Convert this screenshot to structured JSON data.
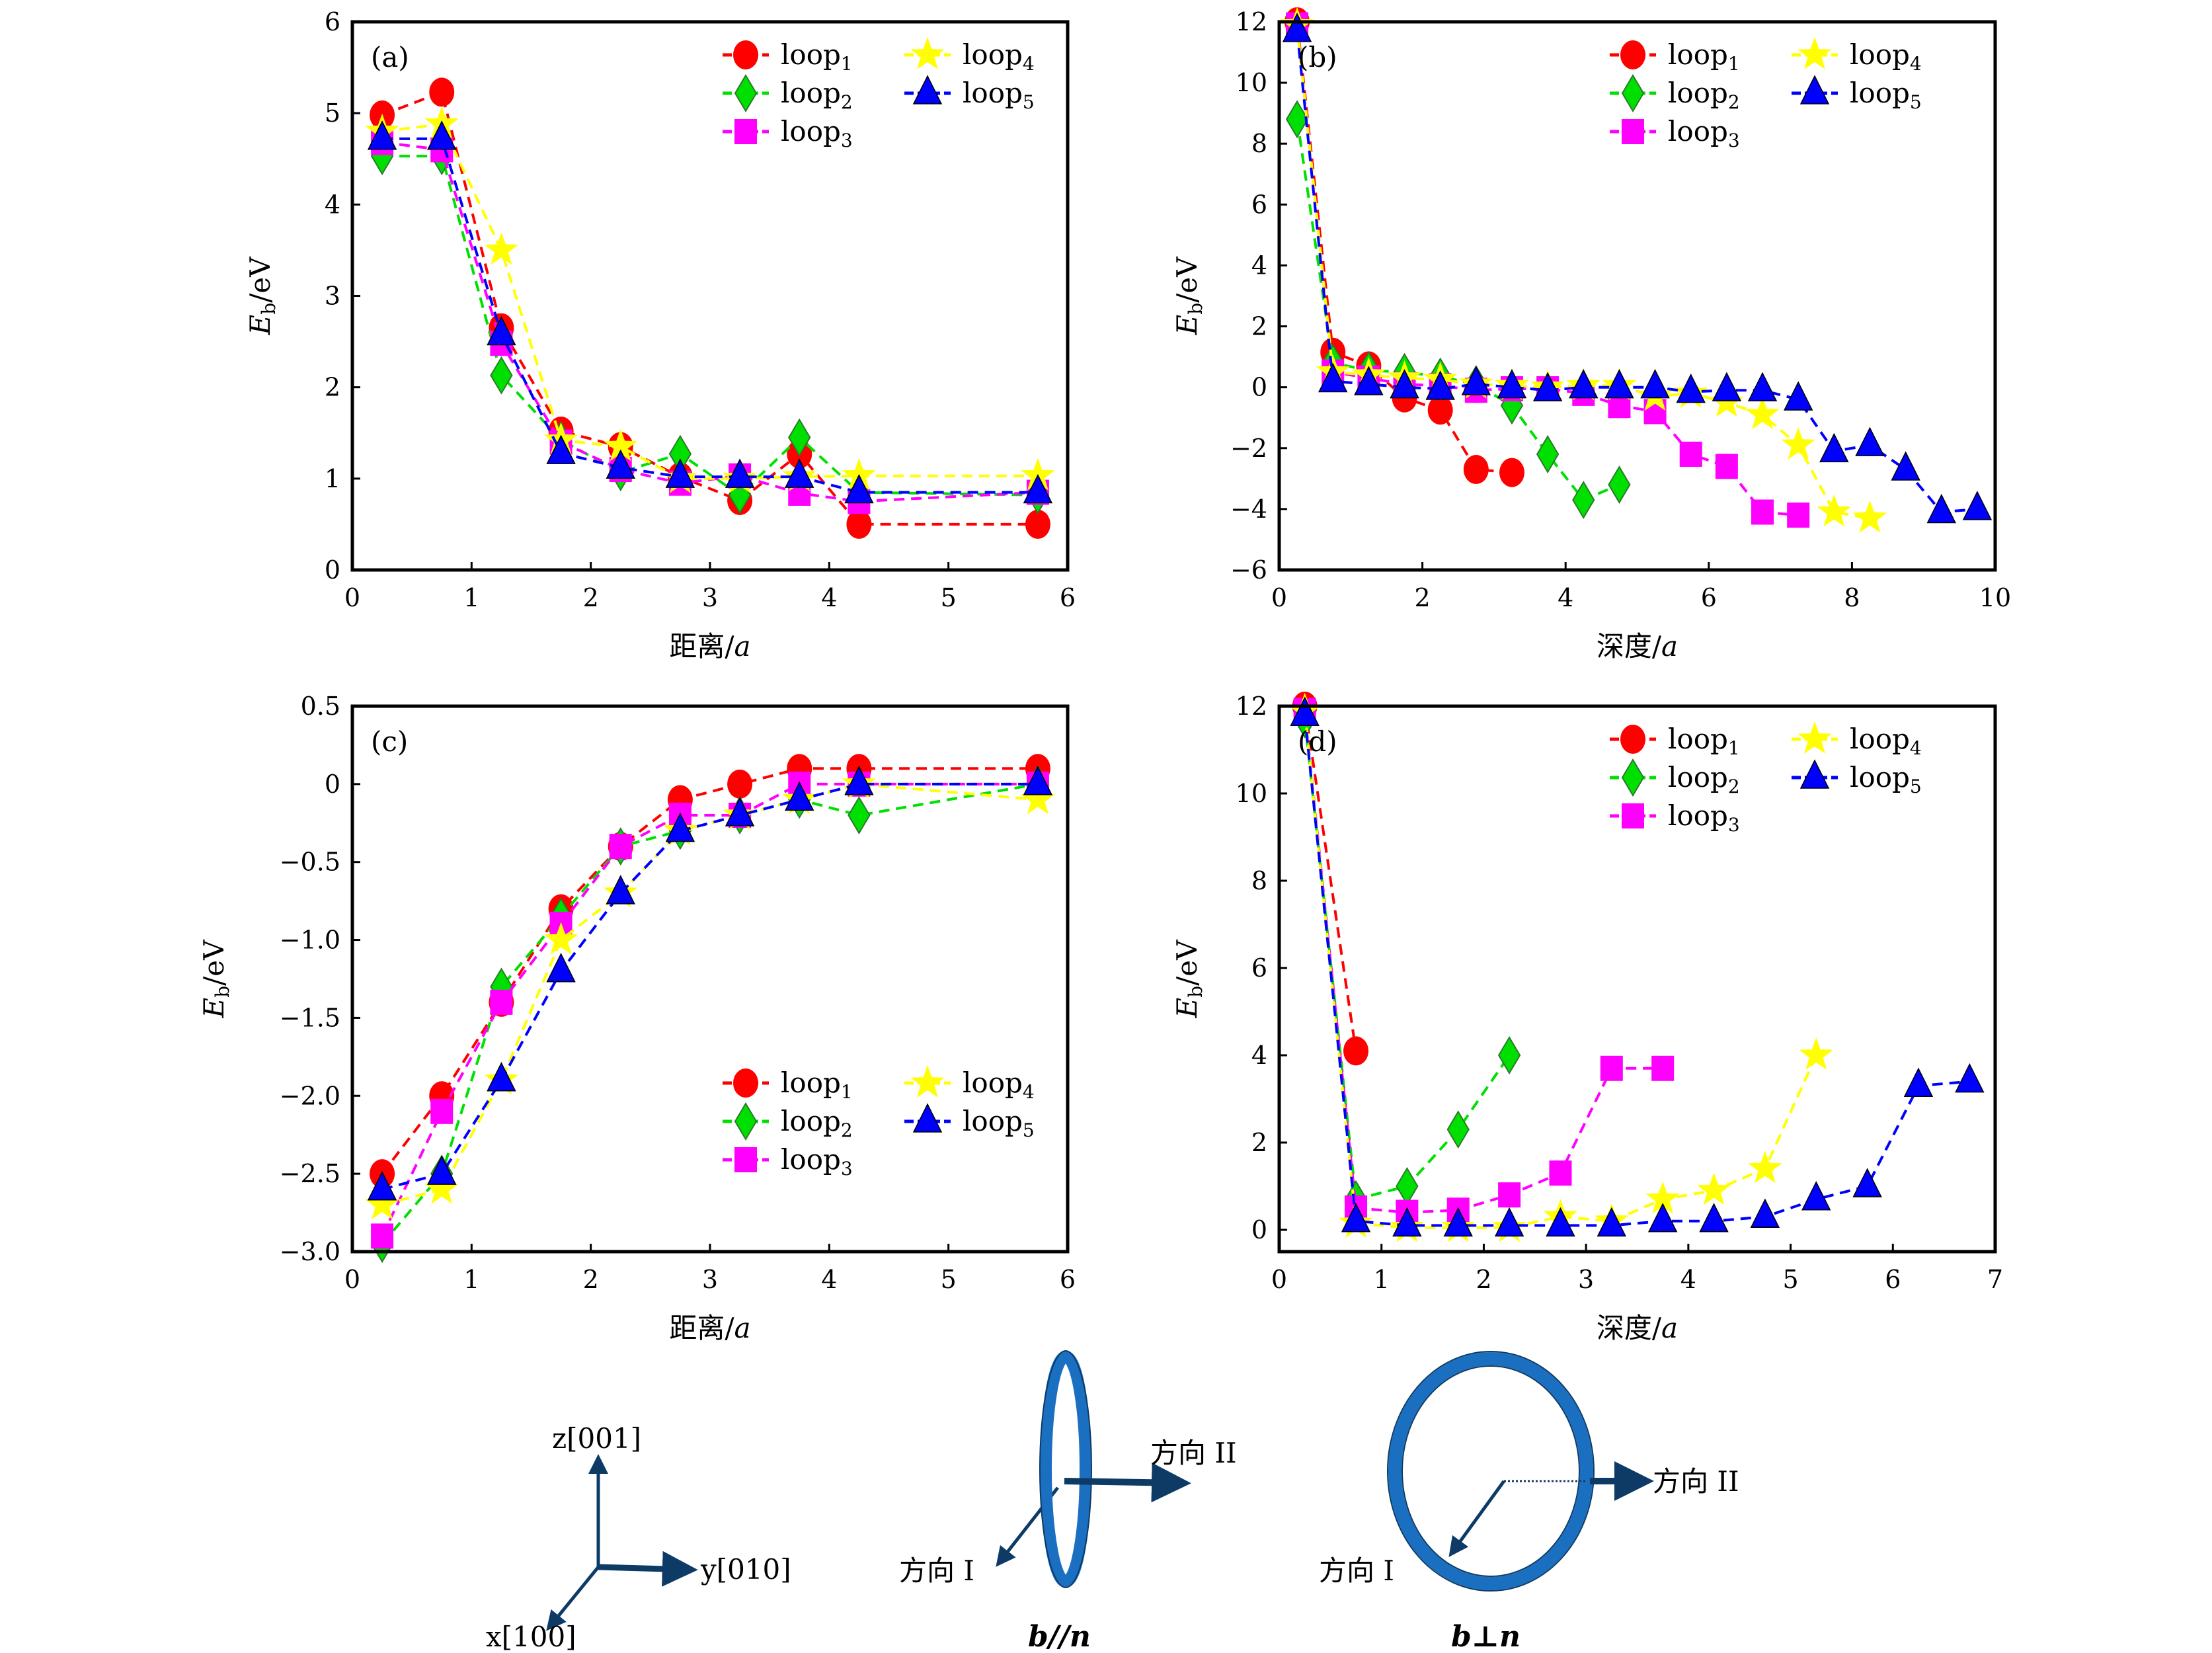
{
  "chart_data": [
    {
      "type": "line",
      "panel_label": "(a)",
      "xlabel": "距离/a",
      "ylabel": "E_b/eV",
      "xlim": [
        0,
        6
      ],
      "ylim": [
        0,
        6
      ],
      "xticks": [
        0,
        1,
        2,
        3,
        4,
        5,
        6
      ],
      "yticks": [
        0,
        1,
        2,
        3,
        4,
        5,
        6
      ],
      "ytick_labels": [
        "0",
        "1",
        "2",
        "3",
        "4",
        "5",
        "6"
      ],
      "grid": false,
      "legend_placement": "top-right",
      "series": [
        {
          "name": "loop1",
          "x": [
            0.25,
            0.75,
            1.25,
            1.75,
            2.25,
            2.75,
            3.25,
            3.75,
            4.25,
            5.75
          ],
          "y": [
            4.98,
            5.23,
            2.65,
            1.52,
            1.35,
            1.02,
            0.76,
            1.27,
            0.5,
            0.5
          ]
        },
        {
          "name": "loop2",
          "x": [
            0.25,
            0.75,
            1.25,
            1.75,
            2.25,
            2.75,
            3.25,
            3.75,
            4.25,
            5.75
          ],
          "y": [
            4.53,
            4.53,
            2.13,
            1.42,
            1.07,
            1.27,
            0.82,
            1.45,
            0.85,
            0.82
          ]
        },
        {
          "name": "loop3",
          "x": [
            0.25,
            0.75,
            1.25,
            1.75,
            2.25,
            2.75,
            3.25,
            3.75,
            4.25,
            5.75
          ],
          "y": [
            4.68,
            4.6,
            2.48,
            1.4,
            1.1,
            0.95,
            1.03,
            0.84,
            0.75,
            0.85
          ]
        },
        {
          "name": "loop4",
          "x": [
            0.25,
            0.75,
            1.25,
            1.75,
            2.25,
            2.75,
            3.25,
            3.75,
            4.25,
            5.75
          ],
          "y": [
            4.8,
            4.88,
            3.5,
            1.42,
            1.35,
            1.0,
            1.0,
            1.02,
            1.03,
            1.03
          ]
        },
        {
          "name": "loop5",
          "x": [
            0.25,
            0.75,
            1.25,
            1.75,
            2.25,
            2.75,
            3.25,
            3.75,
            4.25,
            5.75
          ],
          "y": [
            4.72,
            4.72,
            2.58,
            1.28,
            1.12,
            1.02,
            1.02,
            1.02,
            0.85,
            0.85
          ]
        }
      ]
    },
    {
      "type": "line",
      "panel_label": "(b)",
      "xlabel": "深度/a",
      "ylabel": "E_b/eV",
      "xlim": [
        0,
        10
      ],
      "ylim": [
        -6,
        12
      ],
      "xticks": [
        0,
        2,
        4,
        6,
        8,
        10
      ],
      "yticks": [
        -6,
        -4,
        -2,
        0,
        2,
        4,
        6,
        8,
        10,
        12
      ],
      "ytick_labels": [
        "−6",
        "−4",
        "−2",
        "0",
        "2",
        "4",
        "6",
        "8",
        "10",
        "12"
      ],
      "grid": false,
      "legend_placement": "top-right",
      "series": [
        {
          "name": "loop1",
          "x": [
            0.25,
            0.75,
            1.25,
            1.75,
            2.25,
            2.75,
            3.25
          ],
          "y": [
            12.0,
            1.15,
            0.7,
            -0.35,
            -0.75,
            -2.7,
            -2.8
          ]
        },
        {
          "name": "loop2",
          "x": [
            0.25,
            0.75,
            1.25,
            1.75,
            2.25,
            2.75,
            3.25,
            3.75,
            4.25,
            4.75
          ],
          "y": [
            8.8,
            0.8,
            0.55,
            0.5,
            0.35,
            0.1,
            -0.6,
            -2.2,
            -3.7,
            -3.2
          ]
        },
        {
          "name": "loop3",
          "x": [
            0.25,
            0.75,
            1.25,
            1.75,
            2.25,
            2.75,
            3.25,
            3.75,
            4.25,
            4.75,
            5.25,
            5.75,
            6.25,
            6.75,
            7.25
          ],
          "y": [
            11.9,
            0.5,
            0.3,
            0.1,
            0.05,
            -0.1,
            -0.05,
            -0.05,
            -0.2,
            -0.6,
            -0.8,
            -2.2,
            -2.6,
            -4.1,
            -4.2
          ]
        },
        {
          "name": "loop4",
          "x": [
            0.25,
            0.75,
            1.25,
            1.75,
            2.25,
            2.75,
            3.25,
            3.75,
            4.25,
            4.75,
            5.25,
            5.75,
            6.25,
            6.75,
            7.25,
            7.75,
            8.25
          ],
          "y": [
            11.9,
            0.5,
            0.4,
            0.3,
            0.25,
            0.1,
            0.05,
            0.0,
            0.05,
            0.05,
            -0.3,
            -0.2,
            -0.5,
            -0.9,
            -1.9,
            -4.1,
            -4.3
          ]
        },
        {
          "name": "loop5",
          "x": [
            0.25,
            0.75,
            1.25,
            1.75,
            2.25,
            2.75,
            3.25,
            3.75,
            4.25,
            4.75,
            5.25,
            5.75,
            6.25,
            6.75,
            7.25,
            7.75,
            8.25,
            8.75,
            9.25,
            9.75
          ],
          "y": [
            11.7,
            0.2,
            0.1,
            0.0,
            -0.05,
            0.1,
            0.0,
            -0.1,
            0.0,
            0.0,
            0.0,
            -0.15,
            -0.1,
            -0.1,
            -0.4,
            -2.1,
            -1.9,
            -2.7,
            -4.1,
            -4.0
          ]
        }
      ]
    },
    {
      "type": "line",
      "panel_label": "(c)",
      "xlabel": "距离/a",
      "ylabel": "E_b/eV",
      "xlim": [
        0,
        6
      ],
      "ylim": [
        -3.0,
        0.5
      ],
      "xticks": [
        0,
        1,
        2,
        3,
        4,
        5,
        6
      ],
      "yticks": [
        -3.0,
        -2.5,
        -2.0,
        -1.5,
        -1.0,
        -0.5,
        0,
        0.5
      ],
      "ytick_labels": [
        "−3.0",
        "−2.5",
        "−2.0",
        "−1.5",
        "−1.0",
        "−0.5",
        "0",
        "0.5"
      ],
      "grid": false,
      "legend_placement": "bottom-right",
      "series": [
        {
          "name": "loop1",
          "x": [
            0.25,
            0.75,
            1.25,
            1.75,
            2.25,
            2.75,
            3.25,
            3.75,
            4.25,
            5.75
          ],
          "y": [
            -2.5,
            -2.0,
            -1.4,
            -0.8,
            -0.4,
            -0.1,
            0.0,
            0.1,
            0.1,
            0.1
          ]
        },
        {
          "name": "loop2",
          "x": [
            0.25,
            0.75,
            1.25,
            1.75,
            2.25,
            2.75,
            3.25,
            3.75,
            4.25,
            5.75
          ],
          "y": [
            -2.95,
            -2.5,
            -1.3,
            -0.85,
            -0.4,
            -0.3,
            -0.2,
            -0.1,
            -0.2,
            0.0
          ]
        },
        {
          "name": "loop3",
          "x": [
            0.25,
            0.75,
            1.25,
            1.75,
            2.25,
            2.75,
            3.25,
            3.75,
            4.25,
            5.75
          ],
          "y": [
            -2.9,
            -2.1,
            -1.4,
            -0.9,
            -0.4,
            -0.2,
            -0.2,
            0.0,
            0.0,
            0.0
          ]
        },
        {
          "name": "loop4",
          "x": [
            0.25,
            0.75,
            1.25,
            1.75,
            2.25,
            2.75,
            3.25,
            3.75,
            4.25,
            5.75
          ],
          "y": [
            -2.7,
            -2.6,
            -1.9,
            -1.0,
            -0.7,
            -0.3,
            -0.2,
            -0.1,
            0.0,
            -0.1
          ]
        },
        {
          "name": "loop5",
          "x": [
            0.25,
            0.75,
            1.25,
            1.75,
            2.25,
            2.75,
            3.25,
            3.75,
            4.25,
            5.75
          ],
          "y": [
            -2.6,
            -2.5,
            -1.9,
            -1.2,
            -0.7,
            -0.3,
            -0.2,
            -0.1,
            0.0,
            0.0
          ]
        }
      ]
    },
    {
      "type": "line",
      "panel_label": "(d)",
      "xlabel": "深度/a",
      "ylabel": "E_b/eV",
      "xlim": [
        0,
        7
      ],
      "ylim": [
        -0.5,
        12
      ],
      "xticks": [
        0,
        1,
        2,
        3,
        4,
        5,
        6,
        7
      ],
      "yticks": [
        0,
        2,
        4,
        6,
        8,
        10,
        12
      ],
      "ytick_labels": [
        "0",
        "2",
        "4",
        "6",
        "8",
        "10",
        "12"
      ],
      "grid": false,
      "legend_placement": "top-right",
      "series": [
        {
          "name": "loop1",
          "x": [
            0.25,
            0.75
          ],
          "y": [
            12.0,
            4.1
          ]
        },
        {
          "name": "loop2",
          "x": [
            0.25,
            0.75,
            1.25,
            1.75,
            2.25
          ],
          "y": [
            11.7,
            0.7,
            1.0,
            2.3,
            4.0
          ]
        },
        {
          "name": "loop3",
          "x": [
            0.25,
            0.75,
            1.25,
            1.75,
            2.25,
            2.75,
            3.25,
            3.75
          ],
          "y": [
            11.9,
            0.5,
            0.4,
            0.45,
            0.8,
            1.3,
            3.7,
            3.7
          ]
        },
        {
          "name": "loop4",
          "x": [
            0.25,
            0.75,
            1.25,
            1.75,
            2.25,
            2.75,
            3.25,
            3.75,
            4.25,
            4.75,
            5.25
          ],
          "y": [
            11.9,
            0.15,
            0.05,
            0.05,
            0.05,
            0.3,
            0.2,
            0.7,
            0.9,
            1.4,
            4.0
          ]
        },
        {
          "name": "loop5",
          "x": [
            0.25,
            0.75,
            1.25,
            1.75,
            2.25,
            2.75,
            3.25,
            3.75,
            4.25,
            4.75,
            5.25,
            5.75,
            6.25,
            6.75
          ],
          "y": [
            11.8,
            0.2,
            0.1,
            0.1,
            0.1,
            0.1,
            0.1,
            0.2,
            0.2,
            0.3,
            0.7,
            1.0,
            3.3,
            3.4
          ]
        }
      ]
    }
  ],
  "legend": [
    {
      "name": "loop1",
      "base": "loop",
      "sub": "1",
      "color": "#ff0000",
      "marker": "circle"
    },
    {
      "name": "loop2",
      "base": "loop",
      "sub": "2",
      "color": "#00e000",
      "marker": "diamond"
    },
    {
      "name": "loop3",
      "base": "loop",
      "sub": "3",
      "color": "#ff00ff",
      "marker": "square"
    },
    {
      "name": "loop4",
      "base": "loop",
      "sub": "4",
      "color": "#ffff00",
      "marker": "star"
    },
    {
      "name": "loop5",
      "base": "loop",
      "sub": "5",
      "color": "#0000ff",
      "marker": "triangle"
    }
  ],
  "diagram": {
    "axes": {
      "z": "z[001]",
      "y": "y[010]",
      "x": "x[100]"
    },
    "parallel": {
      "dir1": "方向 I",
      "dir2": "方向 II",
      "caption": "b//n"
    },
    "perpendicular": {
      "dir1": "方向 I",
      "dir2": "方向 II",
      "caption": "b⊥n"
    },
    "loop_color": "#1a6fc0",
    "arrow_color": "#0d3b66"
  }
}
